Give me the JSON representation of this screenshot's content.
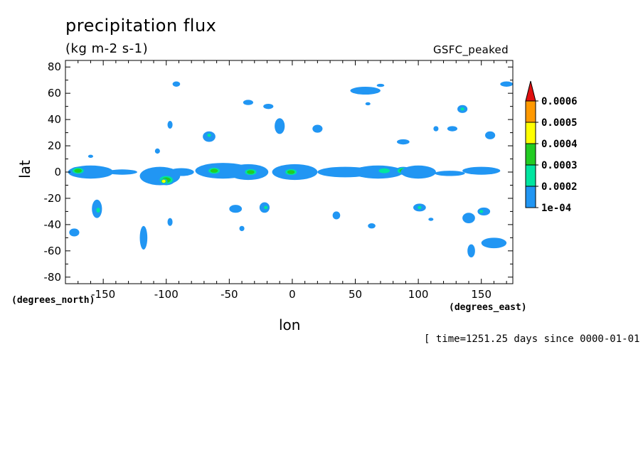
{
  "chart_data": {
    "type": "contour-map",
    "title": "precipitation flux",
    "units": "(kg m-2 s-1)",
    "experiment": "GSFC_peaked",
    "xlabel": "lon",
    "ylabel": "lat",
    "xunits": "(degrees_east)",
    "yunits": "(degrees_north)",
    "xlim": [
      -180,
      175
    ],
    "ylim": [
      -85,
      85
    ],
    "xticks": [
      -150,
      -100,
      -50,
      0,
      50,
      100,
      150
    ],
    "yticks": [
      80,
      60,
      40,
      20,
      0,
      -20,
      -40,
      -60,
      -80
    ],
    "xtick_labels": [
      "-150",
      "-100",
      "-50",
      "0",
      "50",
      "100",
      "150"
    ],
    "ytick_labels": [
      "80",
      "60",
      "40",
      "20",
      "0",
      "-20",
      "-40",
      "-60",
      "-80"
    ],
    "colorbar": {
      "levels": [
        0.0001,
        0.0002,
        0.0003,
        0.0004,
        0.0005,
        0.0006
      ],
      "labels": [
        "1e-04",
        "0.0002",
        "0.0003",
        "0.0004",
        "0.0005",
        "0.0006"
      ],
      "colors": [
        "#2196f3",
        "#00e5a0",
        "#22cc22",
        "#ffff00",
        "#ff9900",
        "#e01010"
      ]
    },
    "features": [
      {
        "lon": -160,
        "lat": 0,
        "rx": 18,
        "ry": 5,
        "level": 1
      },
      {
        "lon": -170,
        "lat": 1,
        "rx": 6,
        "ry": 3,
        "level": 3
      },
      {
        "lon": -135,
        "lat": 0,
        "rx": 12,
        "ry": 2,
        "level": 1
      },
      {
        "lon": -105,
        "lat": -3,
        "rx": 16,
        "ry": 7,
        "level": 1
      },
      {
        "lon": -100,
        "lat": -6,
        "rx": 7,
        "ry": 4,
        "level": 3
      },
      {
        "lon": -102,
        "lat": -7,
        "rx": 3,
        "ry": 2,
        "level": 4
      },
      {
        "lon": -88,
        "lat": 0,
        "rx": 10,
        "ry": 3,
        "level": 1
      },
      {
        "lon": -55,
        "lat": 1,
        "rx": 22,
        "ry": 6,
        "level": 1
      },
      {
        "lon": -62,
        "lat": 1,
        "rx": 6,
        "ry": 3,
        "level": 3
      },
      {
        "lon": -35,
        "lat": 0,
        "rx": 16,
        "ry": 6,
        "level": 1
      },
      {
        "lon": -33,
        "lat": 0,
        "rx": 6,
        "ry": 3,
        "level": 3
      },
      {
        "lon": 2,
        "lat": 0,
        "rx": 18,
        "ry": 6,
        "level": 1
      },
      {
        "lon": -1,
        "lat": 0,
        "rx": 6,
        "ry": 3,
        "level": 3
      },
      {
        "lon": 42,
        "lat": 0,
        "rx": 22,
        "ry": 4,
        "level": 1
      },
      {
        "lon": 68,
        "lat": 0,
        "rx": 20,
        "ry": 5,
        "level": 1
      },
      {
        "lon": 73,
        "lat": 1,
        "rx": 7,
        "ry": 3,
        "level": 2
      },
      {
        "lon": 88,
        "lat": 1,
        "rx": 6,
        "ry": 3,
        "level": 3
      },
      {
        "lon": 100,
        "lat": 0,
        "rx": 14,
        "ry": 5,
        "level": 1
      },
      {
        "lon": 150,
        "lat": 1,
        "rx": 15,
        "ry": 3,
        "level": 1
      },
      {
        "lon": 125,
        "lat": -1,
        "rx": 12,
        "ry": 2,
        "level": 1
      },
      {
        "lon": -155,
        "lat": -28,
        "rx": 4,
        "ry": 7,
        "level": 1
      },
      {
        "lon": -154,
        "lat": -29,
        "rx": 2,
        "ry": 3,
        "level": 2
      },
      {
        "lon": -118,
        "lat": -50,
        "rx": 3,
        "ry": 9,
        "level": 1
      },
      {
        "lon": -22,
        "lat": -27,
        "rx": 4,
        "ry": 4,
        "level": 1
      },
      {
        "lon": -21,
        "lat": -27,
        "rx": 2,
        "ry": 2,
        "level": 2
      },
      {
        "lon": 101,
        "lat": -27,
        "rx": 5,
        "ry": 3,
        "level": 1
      },
      {
        "lon": 101,
        "lat": -27,
        "rx": 2,
        "ry": 1,
        "level": 2
      },
      {
        "lon": 152,
        "lat": -30,
        "rx": 5,
        "ry": 3,
        "level": 1
      },
      {
        "lon": 150,
        "lat": -30,
        "rx": 2,
        "ry": 1,
        "level": 2
      },
      {
        "lon": 142,
        "lat": -60,
        "rx": 3,
        "ry": 5,
        "level": 1
      },
      {
        "lon": 160,
        "lat": -54,
        "rx": 10,
        "ry": 4,
        "level": 1
      },
      {
        "lon": -66,
        "lat": 27,
        "rx": 5,
        "ry": 4,
        "level": 1
      },
      {
        "lon": -66,
        "lat": 28,
        "rx": 2,
        "ry": 2,
        "level": 2
      },
      {
        "lon": -10,
        "lat": 35,
        "rx": 4,
        "ry": 6,
        "level": 1
      },
      {
        "lon": 58,
        "lat": 62,
        "rx": 12,
        "ry": 3,
        "level": 1
      },
      {
        "lon": 88,
        "lat": 23,
        "rx": 5,
        "ry": 2,
        "level": 1
      },
      {
        "lon": 135,
        "lat": 48,
        "rx": 4,
        "ry": 3,
        "level": 1
      },
      {
        "lon": 135,
        "lat": 48,
        "rx": 2,
        "ry": 1,
        "level": 2
      },
      {
        "lon": 127,
        "lat": 33,
        "rx": 4,
        "ry": 2,
        "level": 1
      },
      {
        "lon": 157,
        "lat": 28,
        "rx": 4,
        "ry": 3,
        "level": 1
      },
      {
        "lon": 170,
        "lat": 67,
        "rx": 5,
        "ry": 2,
        "level": 1
      },
      {
        "lon": -92,
        "lat": 67,
        "rx": 3,
        "ry": 2,
        "level": 1
      },
      {
        "lon": -35,
        "lat": 53,
        "rx": 4,
        "ry": 2,
        "level": 1
      },
      {
        "lon": -19,
        "lat": 50,
        "rx": 4,
        "ry": 2,
        "level": 1
      },
      {
        "lon": -97,
        "lat": 36,
        "rx": 2,
        "ry": 3,
        "level": 1
      },
      {
        "lon": 20,
        "lat": 33,
        "rx": 4,
        "ry": 3,
        "level": 1
      },
      {
        "lon": 140,
        "lat": -35,
        "rx": 5,
        "ry": 4,
        "level": 1
      },
      {
        "lon": 63,
        "lat": -41,
        "rx": 3,
        "ry": 2,
        "level": 1
      },
      {
        "lon": 35,
        "lat": -33,
        "rx": 3,
        "ry": 3,
        "level": 1
      },
      {
        "lon": -45,
        "lat": -28,
        "rx": 5,
        "ry": 3,
        "level": 1
      },
      {
        "lon": -173,
        "lat": -46,
        "rx": 4,
        "ry": 3,
        "level": 1
      },
      {
        "lon": -97,
        "lat": -38,
        "rx": 2,
        "ry": 3,
        "level": 1
      },
      {
        "lon": -107,
        "lat": 16,
        "rx": 2,
        "ry": 2,
        "level": 1
      },
      {
        "lon": -40,
        "lat": -43,
        "rx": 2,
        "ry": 2,
        "level": 1
      },
      {
        "lon": 110,
        "lat": -36,
        "rx": 2,
        "ry": 1,
        "level": 1
      },
      {
        "lon": -160,
        "lat": 12,
        "rx": 2,
        "ry": 1,
        "level": 1
      },
      {
        "lon": 114,
        "lat": 33,
        "rx": 2,
        "ry": 2,
        "level": 1
      },
      {
        "lon": 60,
        "lat": 52,
        "rx": 2,
        "ry": 1,
        "level": 1
      },
      {
        "lon": 70,
        "lat": 66,
        "rx": 3,
        "ry": 1,
        "level": 1
      }
    ]
  },
  "footer": {
    "time_info": "[ time=1251.25 days since 0000-01-01 ]"
  }
}
